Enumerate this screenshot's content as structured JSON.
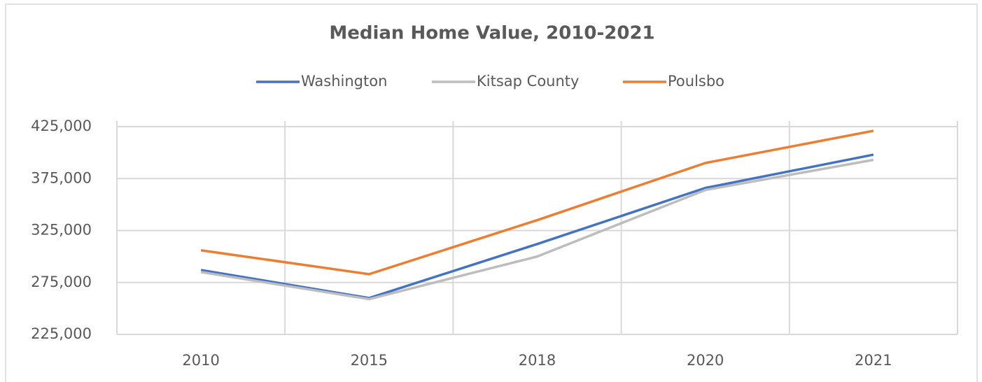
{
  "chart_data": {
    "type": "line",
    "title": "Median Home Value, 2010-2021",
    "categories": [
      "2010",
      "2015",
      "2018",
      "2020",
      "2021"
    ],
    "series": [
      {
        "name": "Washington",
        "color": "#4472c4",
        "values": [
          287000,
          260000,
          312000,
          366000,
          398000
        ]
      },
      {
        "name": "Kitsap County",
        "color": "#bdbdbd",
        "values": [
          285000,
          259000,
          300000,
          364000,
          393000
        ]
      },
      {
        "name": "Poulsbo",
        "color": "#ed7d31",
        "values": [
          306000,
          283000,
          335000,
          390000,
          421000
        ]
      }
    ],
    "ylim": [
      225000,
      425000
    ],
    "yticks": [
      {
        "value": 225000,
        "label": "225,000"
      },
      {
        "value": 275000,
        "label": "275,000"
      },
      {
        "value": 325000,
        "label": "325,000"
      },
      {
        "value": 375000,
        "label": "375,000"
      },
      {
        "value": 425000,
        "label": "425,000"
      }
    ],
    "grid": true,
    "legend": "top"
  }
}
